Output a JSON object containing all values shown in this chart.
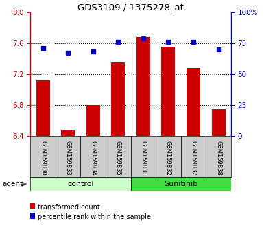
{
  "title": "GDS3109 / 1375278_at",
  "samples": [
    "GSM159830",
    "GSM159833",
    "GSM159834",
    "GSM159835",
    "GSM159831",
    "GSM159832",
    "GSM159837",
    "GSM159838"
  ],
  "transformed_counts": [
    7.12,
    6.47,
    6.8,
    7.35,
    7.68,
    7.55,
    7.28,
    6.75
  ],
  "percentile_ranks": [
    71,
    67,
    68,
    76,
    79,
    76,
    76,
    70
  ],
  "ylim_left": [
    6.4,
    8.0
  ],
  "ylim_right": [
    0,
    100
  ],
  "yticks_left": [
    6.4,
    6.8,
    7.2,
    7.6,
    8.0
  ],
  "yticks_right": [
    0,
    25,
    50,
    75,
    100
  ],
  "bar_color": "#cc0000",
  "dot_color": "#0000cc",
  "control_bg": "#ccffcc",
  "sunitinib_bg": "#44dd44",
  "sample_bg": "#cccccc",
  "agent_label": "agent",
  "group_labels": [
    "control",
    "Sunitinib"
  ],
  "legend_bar_label": "transformed count",
  "legend_dot_label": "percentile rank within the sample",
  "gridline_y": [
    6.8,
    7.2,
    7.6
  ],
  "n_control": 4,
  "n_sunitinib": 4
}
